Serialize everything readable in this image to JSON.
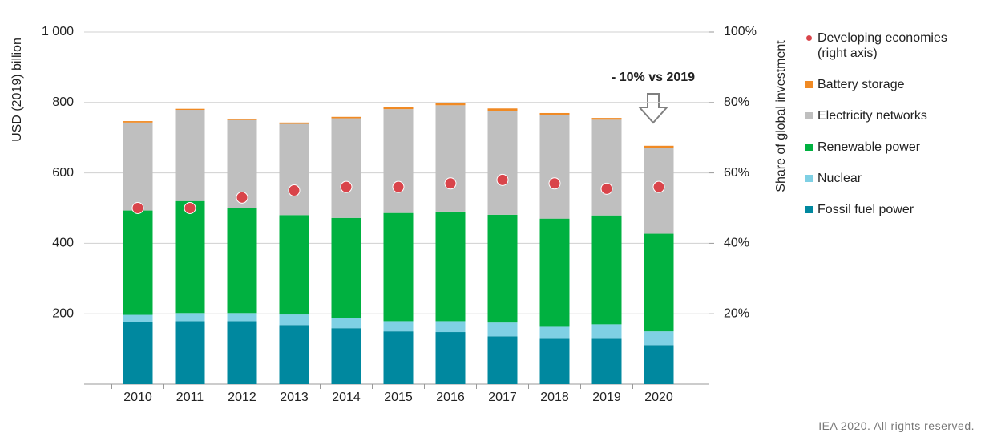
{
  "chart_data": {
    "type": "bar",
    "stacked": true,
    "ylabel": "USD (2019) billion",
    "y2label": "Share of global investment",
    "annotation": "- 10% vs 2019",
    "categories": [
      "2010",
      "2011",
      "2012",
      "2013",
      "2014",
      "2015",
      "2016",
      "2017",
      "2018",
      "2019",
      "2020"
    ],
    "series": [
      {
        "name": "Fossil fuel power",
        "color": "#00889f",
        "values": [
          177,
          179,
          179,
          168,
          159,
          150,
          148,
          136,
          129,
          129,
          111
        ]
      },
      {
        "name": "Nuclear",
        "color": "#7fd0e4",
        "values": [
          20,
          23,
          23,
          30,
          29,
          29,
          31,
          39,
          34,
          41,
          39
        ]
      },
      {
        "name": "Renewable power",
        "color": "#00b140",
        "values": [
          296,
          318,
          298,
          282,
          284,
          307,
          311,
          306,
          307,
          309,
          277
        ]
      },
      {
        "name": "Electricity networks",
        "color": "#bfbfbf",
        "values": [
          250,
          259,
          250,
          259,
          283,
          295,
          302,
          295,
          295,
          272,
          243
        ]
      },
      {
        "name": "Battery storage",
        "color": "#f08a24",
        "values": [
          4,
          3,
          4,
          4,
          4,
          5,
          7,
          7,
          5,
          5,
          7
        ]
      },
      {
        "name": "Developing economies (right axis)",
        "type": "scatter",
        "axis": "y2",
        "color": "#d9444a",
        "values": [
          50,
          50,
          53,
          55,
          56,
          56,
          57,
          58,
          57,
          55.5,
          56
        ]
      }
    ],
    "ylim": [
      0,
      1000
    ],
    "yticks": [
      200,
      400,
      600,
      800,
      {
        "value": 1000,
        "label": "1 000"
      }
    ],
    "y2lim": [
      0,
      100
    ],
    "y2ticks": [
      {
        "value": 20,
        "label": "20%"
      },
      {
        "value": 40,
        "label": "40%"
      },
      {
        "value": 60,
        "label": "60%"
      },
      {
        "value": 80,
        "label": "80%"
      },
      {
        "value": 100,
        "label": "100%"
      }
    ],
    "grid": true
  },
  "source": "IEA 2020. All rights reserved."
}
